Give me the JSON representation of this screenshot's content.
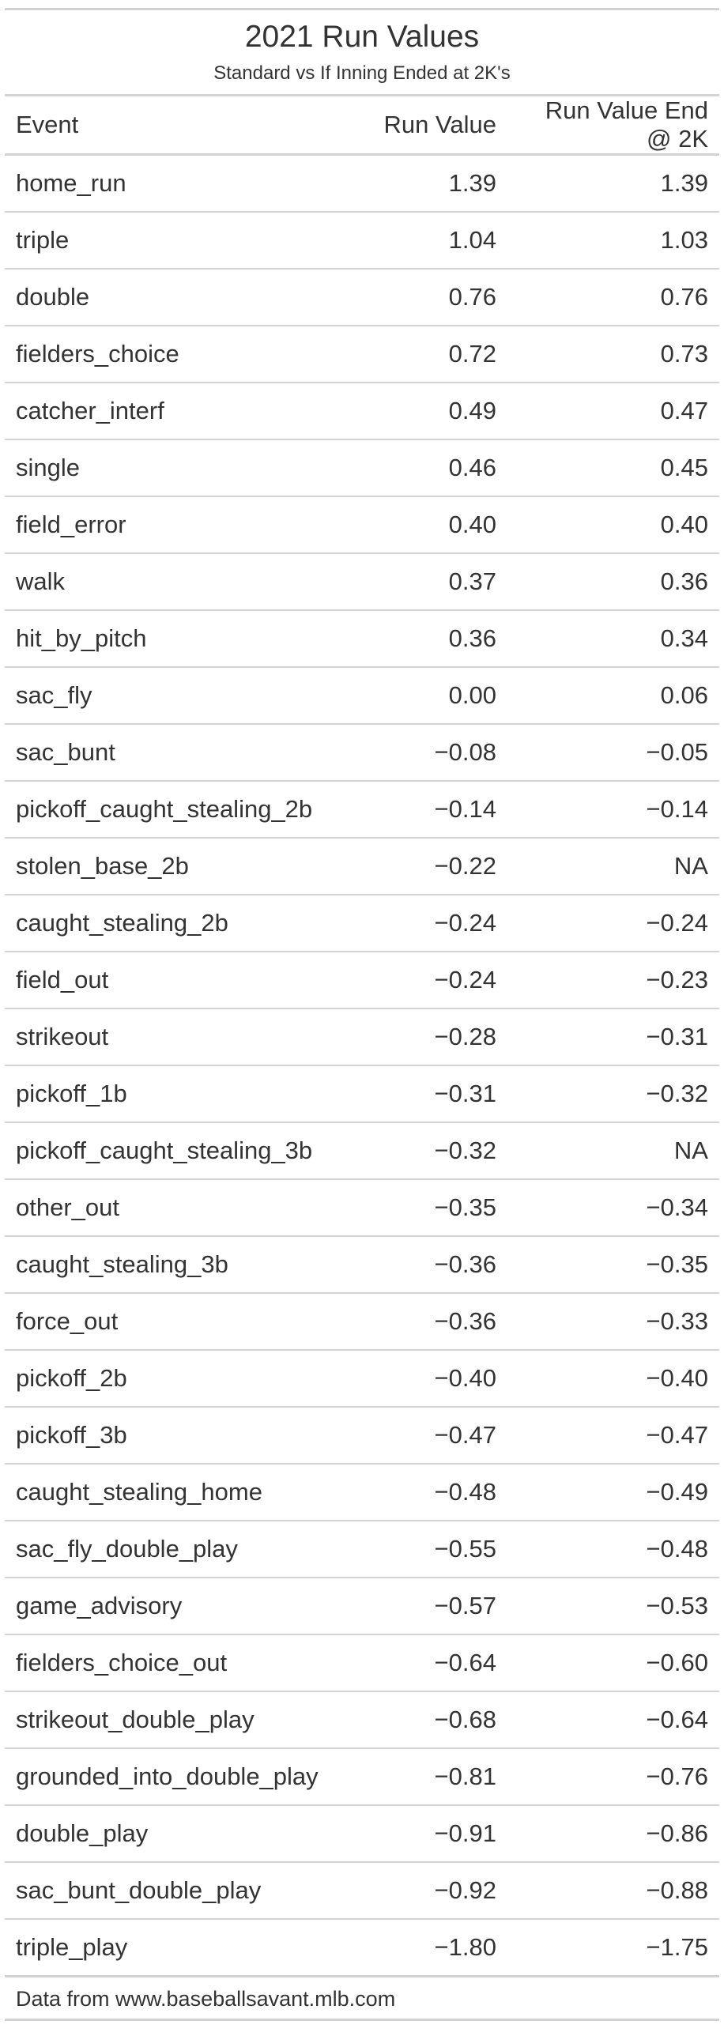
{
  "header": {
    "title": "2021 Run Values",
    "subtitle": "Standard vs If Inning Ended at 2K's"
  },
  "columns": {
    "event": "Event",
    "run_value": "Run Value",
    "run_value_2k": "Run Value End @ 2K"
  },
  "rows": [
    {
      "event": "home_run",
      "run_value": "1.39",
      "run_value_2k": "1.39"
    },
    {
      "event": "triple",
      "run_value": "1.04",
      "run_value_2k": "1.03"
    },
    {
      "event": "double",
      "run_value": "0.76",
      "run_value_2k": "0.76"
    },
    {
      "event": "fielders_choice",
      "run_value": "0.72",
      "run_value_2k": "0.73"
    },
    {
      "event": "catcher_interf",
      "run_value": "0.49",
      "run_value_2k": "0.47"
    },
    {
      "event": "single",
      "run_value": "0.46",
      "run_value_2k": "0.45"
    },
    {
      "event": "field_error",
      "run_value": "0.40",
      "run_value_2k": "0.40"
    },
    {
      "event": "walk",
      "run_value": "0.37",
      "run_value_2k": "0.36"
    },
    {
      "event": "hit_by_pitch",
      "run_value": "0.36",
      "run_value_2k": "0.34"
    },
    {
      "event": "sac_fly",
      "run_value": "0.00",
      "run_value_2k": "0.06"
    },
    {
      "event": "sac_bunt",
      "run_value": "−0.08",
      "run_value_2k": "−0.05"
    },
    {
      "event": "pickoff_caught_stealing_2b",
      "run_value": "−0.14",
      "run_value_2k": "−0.14"
    },
    {
      "event": "stolen_base_2b",
      "run_value": "−0.22",
      "run_value_2k": "NA"
    },
    {
      "event": "caught_stealing_2b",
      "run_value": "−0.24",
      "run_value_2k": "−0.24"
    },
    {
      "event": "field_out",
      "run_value": "−0.24",
      "run_value_2k": "−0.23"
    },
    {
      "event": "strikeout",
      "run_value": "−0.28",
      "run_value_2k": "−0.31"
    },
    {
      "event": "pickoff_1b",
      "run_value": "−0.31",
      "run_value_2k": "−0.32"
    },
    {
      "event": "pickoff_caught_stealing_3b",
      "run_value": "−0.32",
      "run_value_2k": "NA"
    },
    {
      "event": "other_out",
      "run_value": "−0.35",
      "run_value_2k": "−0.34"
    },
    {
      "event": "caught_stealing_3b",
      "run_value": "−0.36",
      "run_value_2k": "−0.35"
    },
    {
      "event": "force_out",
      "run_value": "−0.36",
      "run_value_2k": "−0.33"
    },
    {
      "event": "pickoff_2b",
      "run_value": "−0.40",
      "run_value_2k": "−0.40"
    },
    {
      "event": "pickoff_3b",
      "run_value": "−0.47",
      "run_value_2k": "−0.47"
    },
    {
      "event": "caught_stealing_home",
      "run_value": "−0.48",
      "run_value_2k": "−0.49"
    },
    {
      "event": "sac_fly_double_play",
      "run_value": "−0.55",
      "run_value_2k": "−0.48"
    },
    {
      "event": "game_advisory",
      "run_value": "−0.57",
      "run_value_2k": "−0.53"
    },
    {
      "event": "fielders_choice_out",
      "run_value": "−0.64",
      "run_value_2k": "−0.60"
    },
    {
      "event": "strikeout_double_play",
      "run_value": "−0.68",
      "run_value_2k": "−0.64"
    },
    {
      "event": "grounded_into_double_play",
      "run_value": "−0.81",
      "run_value_2k": "−0.76"
    },
    {
      "event": "double_play",
      "run_value": "−0.91",
      "run_value_2k": "−0.86"
    },
    {
      "event": "sac_bunt_double_play",
      "run_value": "−0.92",
      "run_value_2k": "−0.88"
    },
    {
      "event": "triple_play",
      "run_value": "−1.80",
      "run_value_2k": "−1.75"
    }
  ],
  "footer": {
    "source": "Data from www.baseballsavant.mlb.com"
  }
}
